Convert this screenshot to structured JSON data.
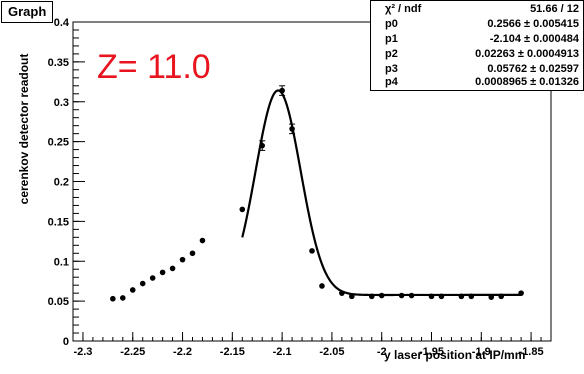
{
  "graph_tag": "Graph",
  "z_label": "Z= 11.0",
  "stats": {
    "header_name": "χ² / ndf",
    "header_value": "51.66 / 12",
    "rows": [
      {
        "name": "p0",
        "value": "0.2566 ± 0.005415"
      },
      {
        "name": "p1",
        "value": "-2.104 ± 0.000484"
      },
      {
        "name": "p2",
        "value": "0.02263 ± 0.0004913"
      },
      {
        "name": "p3",
        "value": "0.05762 ± 0.02597"
      },
      {
        "name": "p4",
        "value": "0.0008965 ± 0.01326"
      }
    ]
  },
  "chart_data": {
    "type": "scatter",
    "title": "",
    "xlabel": "y laser position at IP/mm",
    "ylabel": "cerenkov detector readout",
    "xlim": [
      -2.31,
      -1.83
    ],
    "ylim": [
      0,
      0.4
    ],
    "xticks": [
      -2.3,
      -2.25,
      -2.2,
      -2.15,
      -2.1,
      -2.05,
      -2,
      -1.95,
      -1.9,
      -1.85
    ],
    "xtick_labels": [
      "-2.3",
      "-2.25",
      "-2.2",
      "-2.15",
      "-2.1",
      "-2.05",
      "-2",
      "-1.95",
      "-1.9",
      "-1.85"
    ],
    "yticks": [
      0,
      0.05,
      0.1,
      0.15,
      0.2,
      0.25,
      0.3,
      0.35,
      0.4
    ],
    "ytick_labels": [
      "0",
      "0.05",
      "0.1",
      "0.15",
      "0.2",
      "0.25",
      "0.3",
      "0.35",
      "0.4"
    ],
    "grid": false,
    "points": [
      {
        "x": -2.27,
        "y": 0.053
      },
      {
        "x": -2.26,
        "y": 0.054
      },
      {
        "x": -2.25,
        "y": 0.064
      },
      {
        "x": -2.24,
        "y": 0.072
      },
      {
        "x": -2.23,
        "y": 0.079
      },
      {
        "x": -2.22,
        "y": 0.086
      },
      {
        "x": -2.21,
        "y": 0.091
      },
      {
        "x": -2.2,
        "y": 0.102
      },
      {
        "x": -2.19,
        "y": 0.11
      },
      {
        "x": -2.18,
        "y": 0.126
      },
      {
        "x": -2.14,
        "y": 0.165
      },
      {
        "x": -2.12,
        "y": 0.245,
        "err": 0.006
      },
      {
        "x": -2.1,
        "y": 0.314,
        "err": 0.006
      },
      {
        "x": -2.09,
        "y": 0.266,
        "err": 0.006
      },
      {
        "x": -2.07,
        "y": 0.113
      },
      {
        "x": -2.06,
        "y": 0.069
      },
      {
        "x": -2.04,
        "y": 0.06
      },
      {
        "x": -2.03,
        "y": 0.056
      },
      {
        "x": -2.01,
        "y": 0.056
      },
      {
        "x": -2.0,
        "y": 0.057
      },
      {
        "x": -1.98,
        "y": 0.057
      },
      {
        "x": -1.97,
        "y": 0.057
      },
      {
        "x": -1.95,
        "y": 0.056
      },
      {
        "x": -1.94,
        "y": 0.056
      },
      {
        "x": -1.92,
        "y": 0.056
      },
      {
        "x": -1.91,
        "y": 0.056
      },
      {
        "x": -1.89,
        "y": 0.055
      },
      {
        "x": -1.88,
        "y": 0.056
      },
      {
        "x": -1.86,
        "y": 0.06
      }
    ],
    "fit": {
      "function": "gaussian + constant",
      "p0": 0.2566,
      "p1": -2.104,
      "p2": 0.02263,
      "p3": 0.05762,
      "p4": 0.0008965,
      "x_range": [
        -2.14,
        -1.86
      ],
      "color": "#000000"
    },
    "marker_color": "#000000"
  }
}
